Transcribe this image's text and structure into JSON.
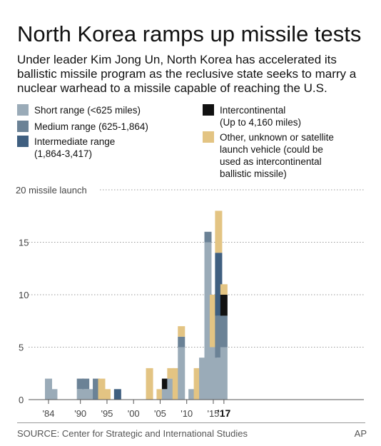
{
  "header": {
    "title": "North Korea ramps up missile tests",
    "subtitle": "Under leader Kim Jong Un, North Korea has accelerated its ballistic missile program as the reclusive state seeks to marry a nuclear warhead to a missile capable of reaching the U.S."
  },
  "legend": {
    "short": "Short range (<625 miles)",
    "medium": "Medium range (625-1,864)",
    "intermediate_1": "Intermediate range",
    "intermediate_2": "(1,864-3,417)",
    "icbm_1": "Intercontinental",
    "icbm_2": "(Up to 4,160 miles)",
    "other_1": "Other, unknown or satellite",
    "other_2": "launch vehicle (could be",
    "other_3": "used as intercontinental",
    "other_4": "ballistic missile)"
  },
  "colors": {
    "short": "#9aabb8",
    "medium": "#6b8296",
    "intermediate": "#3f5f80",
    "icbm": "#111111",
    "other": "#e3c483",
    "grid": "#9a9a9a",
    "axis_text": "#444444"
  },
  "footer": {
    "source": "SOURCE: Center for Strategic and International Studies",
    "credit": "AP"
  },
  "chart_data": {
    "type": "bar",
    "stacked": true,
    "y_top_label": "20 missile launch",
    "ylim": [
      0,
      20
    ],
    "yticks": [
      0,
      5,
      10,
      15
    ],
    "xtick_labels": [
      "'84",
      "'90",
      "'95",
      "'00",
      "'05",
      "'10",
      "'15",
      "'17"
    ],
    "xtick_years": [
      1984,
      1990,
      1995,
      2000,
      2005,
      2010,
      2015,
      2017
    ],
    "years": [
      1984,
      1985,
      1986,
      1987,
      1988,
      1989,
      1990,
      1991,
      1992,
      1993,
      1994,
      1995,
      1996,
      1997,
      1998,
      1999,
      2000,
      2001,
      2002,
      2003,
      2004,
      2005,
      2006,
      2007,
      2008,
      2009,
      2010,
      2011,
      2012,
      2013,
      2014,
      2015,
      2016,
      2017
    ],
    "series": [
      {
        "key": "short",
        "name": "Short range (<625 miles)",
        "values": [
          2,
          1,
          0,
          0,
          0,
          0,
          1,
          1,
          1,
          0,
          0,
          0,
          0,
          0,
          0,
          0,
          0,
          0,
          0,
          0,
          0,
          0,
          1,
          2,
          0,
          5,
          0,
          1,
          0,
          4,
          15,
          5,
          4,
          5
        ]
      },
      {
        "key": "medium",
        "name": "Medium range (625-1,864)",
        "values": [
          0,
          0,
          0,
          0,
          0,
          0,
          1,
          1,
          0,
          2,
          0,
          0,
          0,
          0,
          0,
          0,
          0,
          0,
          0,
          0,
          0,
          0,
          0,
          0,
          0,
          1,
          0,
          0,
          0,
          0,
          1,
          0,
          4,
          3
        ]
      },
      {
        "key": "intermediate",
        "name": "Intermediate range (1,864-3,417)",
        "values": [
          0,
          0,
          0,
          0,
          0,
          0,
          0,
          0,
          0,
          0,
          0,
          0,
          0,
          1,
          0,
          0,
          0,
          0,
          0,
          0,
          0,
          0,
          0,
          0,
          0,
          0,
          0,
          0,
          0,
          0,
          0,
          0,
          6,
          0
        ]
      },
      {
        "key": "icbm",
        "name": "Intercontinental (Up to 4,160 miles)",
        "values": [
          0,
          0,
          0,
          0,
          0,
          0,
          0,
          0,
          0,
          0,
          0,
          0,
          0,
          0,
          0,
          0,
          0,
          0,
          0,
          0,
          0,
          0,
          1,
          0,
          0,
          0,
          0,
          0,
          0,
          0,
          0,
          0,
          0,
          2
        ]
      },
      {
        "key": "other",
        "name": "Other, unknown or satellite launch vehicle (could be used as intercontinental ballistic missile)",
        "values": [
          0,
          0,
          0,
          0,
          0,
          0,
          0,
          0,
          0,
          0,
          2,
          1,
          0,
          0,
          0,
          0,
          0,
          0,
          0,
          3,
          0,
          1,
          0,
          1,
          3,
          1,
          0,
          0,
          3,
          0,
          0,
          5,
          4,
          1
        ]
      }
    ]
  }
}
